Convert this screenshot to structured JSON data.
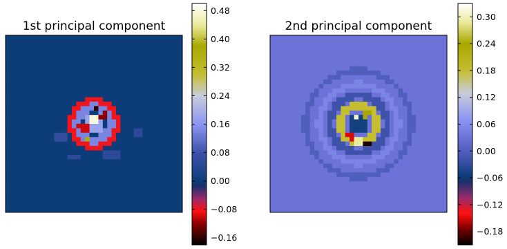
{
  "chart_data": [
    {
      "type": "heatmap",
      "title": "1st principal component",
      "xlabel": "",
      "ylabel": "",
      "grid": false,
      "colorbar": {
        "position": "right",
        "range": [
          -0.18,
          0.5
        ],
        "ticks": [
          0.48,
          0.4,
          0.32,
          0.24,
          0.16,
          0.08,
          0.0,
          -0.08,
          -0.16
        ],
        "tick_labels": [
          "0.48",
          "0.40",
          "0.32",
          "0.24",
          "0.16",
          "0.08",
          "0.00",
          "−0.08",
          "−0.16"
        ],
        "colormap": [
          {
            "v": -0.18,
            "c": "#000000"
          },
          {
            "v": -0.12,
            "c": "#8b0000"
          },
          {
            "v": -0.085,
            "c": "#ff1010"
          },
          {
            "v": -0.05,
            "c": "#9a2a6a"
          },
          {
            "v": -0.015,
            "c": "#1c2f6c"
          },
          {
            "v": 0.0,
            "c": "#0c3d78"
          },
          {
            "v": 0.08,
            "c": "#3f52aa"
          },
          {
            "v": 0.16,
            "c": "#8c96f2"
          },
          {
            "v": 0.24,
            "c": "#c8ccda"
          },
          {
            "v": 0.3,
            "c": "#c4be30"
          },
          {
            "v": 0.38,
            "c": "#a8a800"
          },
          {
            "v": 0.44,
            "c": "#ececa0"
          },
          {
            "v": 0.5,
            "c": "#ffffff"
          }
        ]
      },
      "grid_size": 40,
      "background_value": 0.0,
      "regions": [
        {
          "shape": "ring",
          "cx": 0.5,
          "cy": 0.5,
          "r": 0.13,
          "w": 0.02,
          "value": -0.08
        },
        {
          "shape": "ring",
          "cx": 0.5,
          "cy": 0.5,
          "r": 0.09,
          "w": 0.025,
          "value": 0.14
        },
        {
          "shape": "disc",
          "cx": 0.5,
          "cy": 0.5,
          "r": 0.06,
          "value": 0.18
        },
        {
          "shape": "disc",
          "cx": 0.44,
          "cy": 0.52,
          "r": 0.03,
          "value": -0.1
        },
        {
          "shape": "disc",
          "cx": 0.56,
          "cy": 0.46,
          "r": 0.025,
          "value": -0.12
        },
        {
          "shape": "disc",
          "cx": 0.5,
          "cy": 0.48,
          "r": 0.022,
          "value": 0.48
        },
        {
          "shape": "disc",
          "cx": 0.52,
          "cy": 0.42,
          "r": 0.018,
          "value": -0.16
        },
        {
          "shape": "disc",
          "cx": 0.46,
          "cy": 0.58,
          "r": 0.015,
          "value": 0.36
        },
        {
          "shape": "blob",
          "cx": 0.32,
          "cy": 0.57,
          "r": 0.035,
          "value": 0.06
        },
        {
          "shape": "blob",
          "cx": 0.39,
          "cy": 0.68,
          "r": 0.03,
          "value": 0.05
        },
        {
          "shape": "blob",
          "cx": 0.6,
          "cy": 0.68,
          "r": 0.04,
          "value": 0.05
        },
        {
          "shape": "blob",
          "cx": 0.76,
          "cy": 0.55,
          "r": 0.025,
          "value": 0.05
        }
      ]
    },
    {
      "type": "heatmap",
      "title": "2nd principal component",
      "xlabel": "",
      "ylabel": "",
      "grid": false,
      "colorbar": {
        "position": "right",
        "range": [
          -0.21,
          0.33
        ],
        "ticks": [
          0.3,
          0.24,
          0.18,
          0.12,
          0.06,
          0.0,
          -0.06,
          -0.12,
          -0.18
        ],
        "tick_labels": [
          "0.30",
          "0.24",
          "0.18",
          "0.12",
          "0.06",
          "0.00",
          "−0.06",
          "−0.12",
          "−0.18"
        ],
        "colormap": [
          {
            "v": -0.21,
            "c": "#000000"
          },
          {
            "v": -0.17,
            "c": "#8b0000"
          },
          {
            "v": -0.14,
            "c": "#ff1010"
          },
          {
            "v": -0.105,
            "c": "#9a2a6a"
          },
          {
            "v": -0.07,
            "c": "#1c2f6c"
          },
          {
            "v": -0.055,
            "c": "#0c3d78"
          },
          {
            "v": -0.02,
            "c": "#3f52aa"
          },
          {
            "v": 0.03,
            "c": "#6c72d8"
          },
          {
            "v": 0.07,
            "c": "#8c96f2"
          },
          {
            "v": 0.13,
            "c": "#c8ccda"
          },
          {
            "v": 0.18,
            "c": "#c4be30"
          },
          {
            "v": 0.24,
            "c": "#a8a800"
          },
          {
            "v": 0.29,
            "c": "#ececa0"
          },
          {
            "v": 0.33,
            "c": "#ffffff"
          }
        ]
      },
      "grid_size": 40,
      "background_value": 0.03,
      "regions": [
        {
          "shape": "ring",
          "cx": 0.5,
          "cy": 0.5,
          "r": 0.3,
          "w": 0.015,
          "value": 0.0
        },
        {
          "shape": "ring",
          "cx": 0.5,
          "cy": 0.5,
          "r": 0.22,
          "w": 0.02,
          "value": 0.05
        },
        {
          "shape": "ring",
          "cx": 0.5,
          "cy": 0.5,
          "r": 0.16,
          "w": 0.02,
          "value": -0.02
        },
        {
          "shape": "ring",
          "cx": 0.5,
          "cy": 0.5,
          "r": 0.1,
          "w": 0.025,
          "value": 0.18
        },
        {
          "shape": "disc",
          "cx": 0.5,
          "cy": 0.5,
          "r": 0.06,
          "value": -0.05
        },
        {
          "shape": "disc",
          "cx": 0.54,
          "cy": 0.44,
          "r": 0.025,
          "value": 0.24
        },
        {
          "shape": "disc",
          "cx": 0.46,
          "cy": 0.57,
          "r": 0.025,
          "value": -0.15
        },
        {
          "shape": "disc",
          "cx": 0.5,
          "cy": 0.6,
          "r": 0.02,
          "value": 0.29
        },
        {
          "shape": "disc",
          "cx": 0.55,
          "cy": 0.62,
          "r": 0.02,
          "value": -0.2
        },
        {
          "shape": "disc",
          "cx": 0.48,
          "cy": 0.47,
          "r": 0.015,
          "value": 0.31
        }
      ]
    }
  ]
}
